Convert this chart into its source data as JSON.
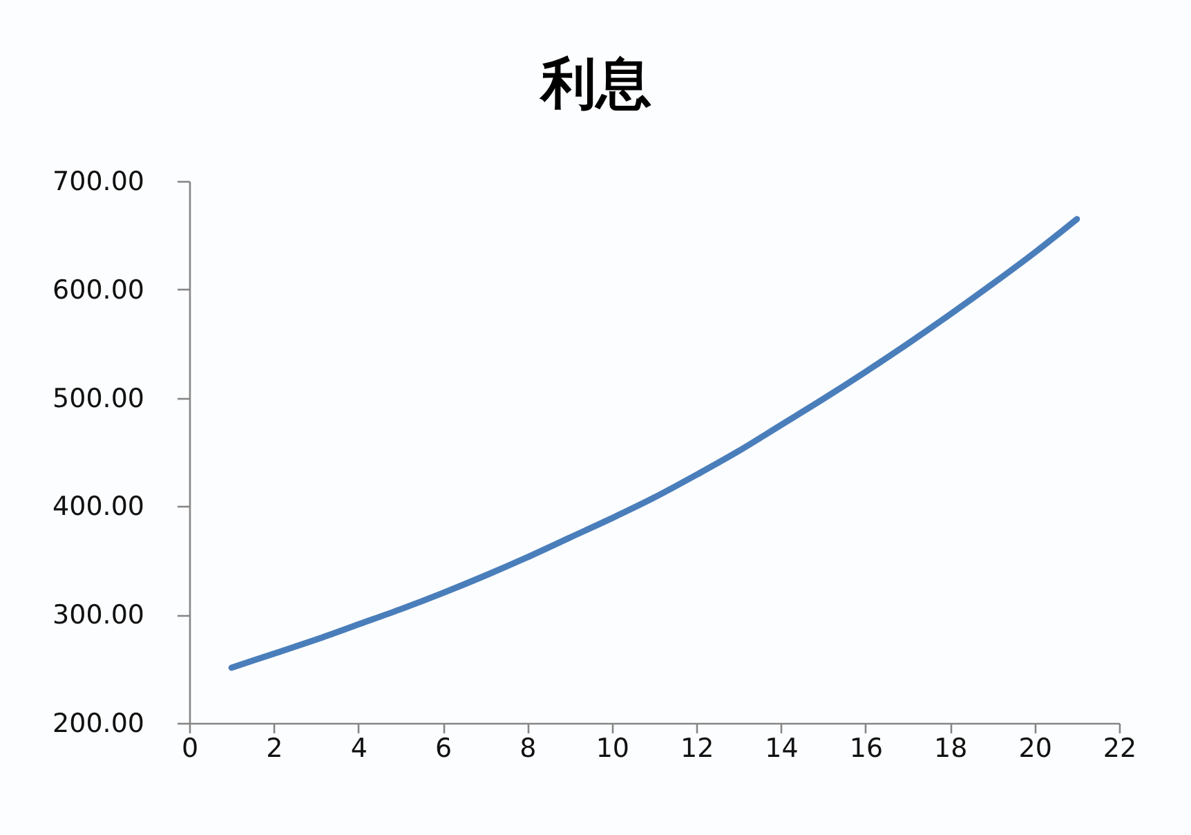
{
  "chart_data": {
    "type": "line",
    "title": "利息",
    "x": [
      1,
      2,
      3,
      4,
      5,
      6,
      7,
      8,
      9,
      10,
      11,
      12,
      13,
      14,
      15,
      16,
      17,
      18,
      19,
      20,
      21
    ],
    "values": [
      251,
      264,
      277,
      291,
      305,
      320,
      336,
      353,
      371,
      389,
      408,
      429,
      451,
      475,
      499,
      524,
      550,
      577,
      605,
      634,
      665
    ],
    "color": "#4a7ebb",
    "xlim": [
      0,
      22
    ],
    "xticks": [
      0,
      2,
      4,
      6,
      8,
      10,
      12,
      14,
      16,
      18,
      20,
      22
    ],
    "ylim": [
      200,
      700
    ],
    "yticks": [
      {
        "value": 200,
        "label": "200.00"
      },
      {
        "value": 300,
        "label": "300.00"
      },
      {
        "value": 400,
        "label": "400.00"
      },
      {
        "value": 500,
        "label": "500.00"
      },
      {
        "value": 600,
        "label": "600.00"
      },
      {
        "value": 700,
        "label": "700.00"
      }
    ],
    "grid": false
  }
}
